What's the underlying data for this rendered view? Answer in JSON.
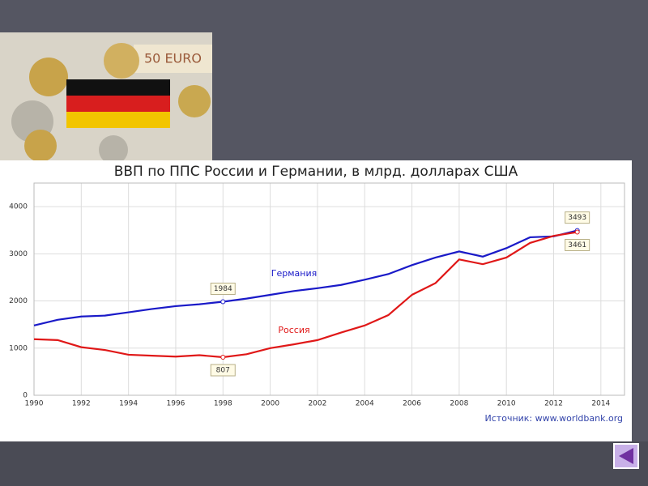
{
  "chart_data": {
    "type": "line",
    "title": "ВВП по ППС России и Германии, в млрд. долларах США",
    "source": "Источник: www.worldbank.org",
    "x": [
      1990,
      1991,
      1992,
      1993,
      1994,
      1995,
      1996,
      1997,
      1998,
      1999,
      2000,
      2001,
      2002,
      2003,
      2004,
      2005,
      2006,
      2007,
      2008,
      2009,
      2010,
      2011,
      2012,
      2013
    ],
    "series": [
      {
        "name": "Германия",
        "color": "#1a1ac8",
        "values": [
          1480,
          1600,
          1670,
          1690,
          1760,
          1830,
          1890,
          1930,
          1984,
          2050,
          2130,
          2210,
          2270,
          2340,
          2450,
          2570,
          2760,
          2920,
          3050,
          2940,
          3120,
          3350,
          3370,
          3493
        ]
      },
      {
        "name": "Россия",
        "color": "#e01818",
        "values": [
          1190,
          1170,
          1020,
          960,
          860,
          840,
          820,
          850,
          807,
          870,
          1000,
          1080,
          1170,
          1330,
          1480,
          1700,
          2130,
          2380,
          2880,
          2780,
          2920,
          3230,
          3380,
          3461
        ]
      }
    ],
    "xlim": [
      1990,
      2015
    ],
    "xticks": [
      1990,
      1992,
      1994,
      1996,
      1998,
      2000,
      2002,
      2004,
      2006,
      2008,
      2010,
      2012,
      2014
    ],
    "ylim": [
      0,
      4500
    ],
    "yticks": [
      0,
      1000,
      2000,
      3000,
      4000
    ],
    "grid": true
  }
}
